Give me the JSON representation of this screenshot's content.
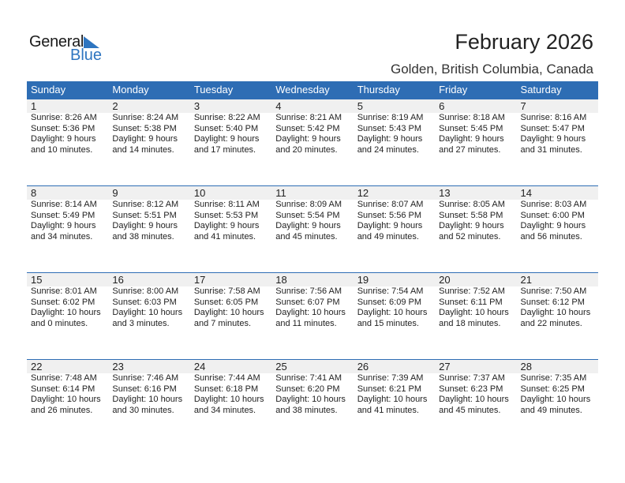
{
  "logo": {
    "general": "General",
    "blue": "Blue",
    "brand_color": "#2e75c0"
  },
  "title": "February 2026",
  "location": "Golden, British Columbia, Canada",
  "header_color": "#2e6db4",
  "weekdays": [
    "Sunday",
    "Monday",
    "Tuesday",
    "Wednesday",
    "Thursday",
    "Friday",
    "Saturday"
  ],
  "weeks": [
    [
      {
        "day": "1",
        "sunrise": "Sunrise: 8:26 AM",
        "sunset": "Sunset: 5:36 PM",
        "daylight1": "Daylight: 9 hours",
        "daylight2": "and 10 minutes."
      },
      {
        "day": "2",
        "sunrise": "Sunrise: 8:24 AM",
        "sunset": "Sunset: 5:38 PM",
        "daylight1": "Daylight: 9 hours",
        "daylight2": "and 14 minutes."
      },
      {
        "day": "3",
        "sunrise": "Sunrise: 8:22 AM",
        "sunset": "Sunset: 5:40 PM",
        "daylight1": "Daylight: 9 hours",
        "daylight2": "and 17 minutes."
      },
      {
        "day": "4",
        "sunrise": "Sunrise: 8:21 AM",
        "sunset": "Sunset: 5:42 PM",
        "daylight1": "Daylight: 9 hours",
        "daylight2": "and 20 minutes."
      },
      {
        "day": "5",
        "sunrise": "Sunrise: 8:19 AM",
        "sunset": "Sunset: 5:43 PM",
        "daylight1": "Daylight: 9 hours",
        "daylight2": "and 24 minutes."
      },
      {
        "day": "6",
        "sunrise": "Sunrise: 8:18 AM",
        "sunset": "Sunset: 5:45 PM",
        "daylight1": "Daylight: 9 hours",
        "daylight2": "and 27 minutes."
      },
      {
        "day": "7",
        "sunrise": "Sunrise: 8:16 AM",
        "sunset": "Sunset: 5:47 PM",
        "daylight1": "Daylight: 9 hours",
        "daylight2": "and 31 minutes."
      }
    ],
    [
      {
        "day": "8",
        "sunrise": "Sunrise: 8:14 AM",
        "sunset": "Sunset: 5:49 PM",
        "daylight1": "Daylight: 9 hours",
        "daylight2": "and 34 minutes."
      },
      {
        "day": "9",
        "sunrise": "Sunrise: 8:12 AM",
        "sunset": "Sunset: 5:51 PM",
        "daylight1": "Daylight: 9 hours",
        "daylight2": "and 38 minutes."
      },
      {
        "day": "10",
        "sunrise": "Sunrise: 8:11 AM",
        "sunset": "Sunset: 5:53 PM",
        "daylight1": "Daylight: 9 hours",
        "daylight2": "and 41 minutes."
      },
      {
        "day": "11",
        "sunrise": "Sunrise: 8:09 AM",
        "sunset": "Sunset: 5:54 PM",
        "daylight1": "Daylight: 9 hours",
        "daylight2": "and 45 minutes."
      },
      {
        "day": "12",
        "sunrise": "Sunrise: 8:07 AM",
        "sunset": "Sunset: 5:56 PM",
        "daylight1": "Daylight: 9 hours",
        "daylight2": "and 49 minutes."
      },
      {
        "day": "13",
        "sunrise": "Sunrise: 8:05 AM",
        "sunset": "Sunset: 5:58 PM",
        "daylight1": "Daylight: 9 hours",
        "daylight2": "and 52 minutes."
      },
      {
        "day": "14",
        "sunrise": "Sunrise: 8:03 AM",
        "sunset": "Sunset: 6:00 PM",
        "daylight1": "Daylight: 9 hours",
        "daylight2": "and 56 minutes."
      }
    ],
    [
      {
        "day": "15",
        "sunrise": "Sunrise: 8:01 AM",
        "sunset": "Sunset: 6:02 PM",
        "daylight1": "Daylight: 10 hours",
        "daylight2": "and 0 minutes."
      },
      {
        "day": "16",
        "sunrise": "Sunrise: 8:00 AM",
        "sunset": "Sunset: 6:03 PM",
        "daylight1": "Daylight: 10 hours",
        "daylight2": "and 3 minutes."
      },
      {
        "day": "17",
        "sunrise": "Sunrise: 7:58 AM",
        "sunset": "Sunset: 6:05 PM",
        "daylight1": "Daylight: 10 hours",
        "daylight2": "and 7 minutes."
      },
      {
        "day": "18",
        "sunrise": "Sunrise: 7:56 AM",
        "sunset": "Sunset: 6:07 PM",
        "daylight1": "Daylight: 10 hours",
        "daylight2": "and 11 minutes."
      },
      {
        "day": "19",
        "sunrise": "Sunrise: 7:54 AM",
        "sunset": "Sunset: 6:09 PM",
        "daylight1": "Daylight: 10 hours",
        "daylight2": "and 15 minutes."
      },
      {
        "day": "20",
        "sunrise": "Sunrise: 7:52 AM",
        "sunset": "Sunset: 6:11 PM",
        "daylight1": "Daylight: 10 hours",
        "daylight2": "and 18 minutes."
      },
      {
        "day": "21",
        "sunrise": "Sunrise: 7:50 AM",
        "sunset": "Sunset: 6:12 PM",
        "daylight1": "Daylight: 10 hours",
        "daylight2": "and 22 minutes."
      }
    ],
    [
      {
        "day": "22",
        "sunrise": "Sunrise: 7:48 AM",
        "sunset": "Sunset: 6:14 PM",
        "daylight1": "Daylight: 10 hours",
        "daylight2": "and 26 minutes."
      },
      {
        "day": "23",
        "sunrise": "Sunrise: 7:46 AM",
        "sunset": "Sunset: 6:16 PM",
        "daylight1": "Daylight: 10 hours",
        "daylight2": "and 30 minutes."
      },
      {
        "day": "24",
        "sunrise": "Sunrise: 7:44 AM",
        "sunset": "Sunset: 6:18 PM",
        "daylight1": "Daylight: 10 hours",
        "daylight2": "and 34 minutes."
      },
      {
        "day": "25",
        "sunrise": "Sunrise: 7:41 AM",
        "sunset": "Sunset: 6:20 PM",
        "daylight1": "Daylight: 10 hours",
        "daylight2": "and 38 minutes."
      },
      {
        "day": "26",
        "sunrise": "Sunrise: 7:39 AM",
        "sunset": "Sunset: 6:21 PM",
        "daylight1": "Daylight: 10 hours",
        "daylight2": "and 41 minutes."
      },
      {
        "day": "27",
        "sunrise": "Sunrise: 7:37 AM",
        "sunset": "Sunset: 6:23 PM",
        "daylight1": "Daylight: 10 hours",
        "daylight2": "and 45 minutes."
      },
      {
        "day": "28",
        "sunrise": "Sunrise: 7:35 AM",
        "sunset": "Sunset: 6:25 PM",
        "daylight1": "Daylight: 10 hours",
        "daylight2": "and 49 minutes."
      }
    ]
  ]
}
